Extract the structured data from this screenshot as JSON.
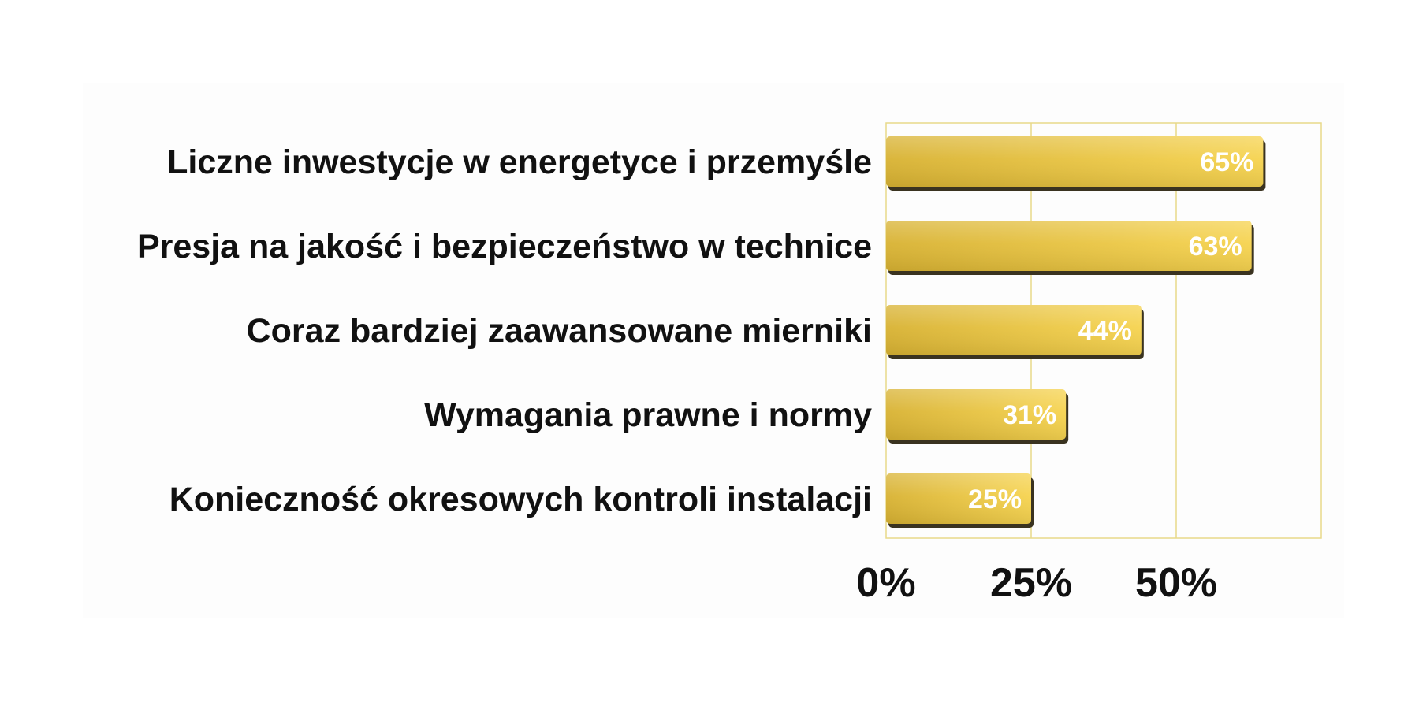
{
  "chart_data": {
    "type": "bar",
    "orientation": "horizontal",
    "categories": [
      "Liczne inwestycje w energetyce i przemyśle",
      "Presja na jakość i bezpieczeństwo w technice",
      "Coraz bardziej zaawansowane mierniki",
      "Wymagania prawne i normy",
      "Konieczność okresowych kontroli instalacji"
    ],
    "values": [
      65,
      63,
      44,
      31,
      25
    ],
    "value_labels": [
      "65%",
      "63%",
      "44%",
      "31%",
      "25%"
    ],
    "xlim": [
      0,
      75
    ],
    "x_ticks": [
      0,
      25,
      50
    ],
    "x_tick_labels": [
      "0%",
      "25%",
      "50%"
    ],
    "title": "",
    "xlabel": "",
    "ylabel": "",
    "grid": true,
    "legend": "none",
    "colors": {
      "bar_light": "#f6d34f",
      "bar_dark": "#d8b232",
      "bar_shadow": "#3a3320",
      "gridline": "#e8d98a",
      "plot_border": "#e8d98a",
      "background": "#fdfdfd"
    }
  }
}
